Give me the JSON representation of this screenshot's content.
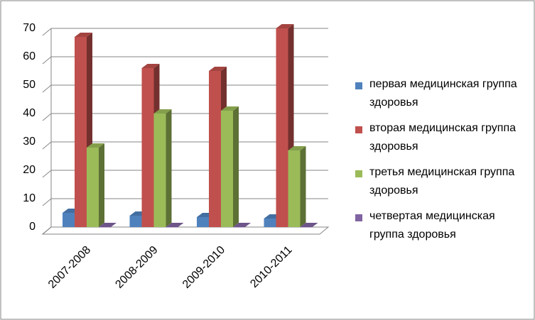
{
  "chart_data": {
    "type": "bar3d",
    "categories": [
      "2007-2008",
      "2008-2009",
      "2009-2010",
      "2010-2011"
    ],
    "series": [
      {
        "name": "первая медицинская группа здоровья",
        "color": "#4f81bd",
        "values": [
          5,
          4,
          3.5,
          3
        ]
      },
      {
        "name": "вторая медицинская группа здоровья",
        "color": "#c0504d",
        "values": [
          67,
          56,
          55,
          70
        ]
      },
      {
        "name": "третья медицинская группа здоровья",
        "color": "#9bbb59",
        "values": [
          28,
          40,
          41,
          27
        ]
      },
      {
        "name": "четвертая медицинская группа здоровья",
        "color": "#8064a2",
        "values": [
          0,
          0,
          0,
          0
        ]
      }
    ],
    "ylim": [
      0,
      70
    ],
    "yticks": [
      0,
      10,
      20,
      30,
      40,
      50,
      60,
      70
    ],
    "grid": true,
    "legend": "right"
  }
}
